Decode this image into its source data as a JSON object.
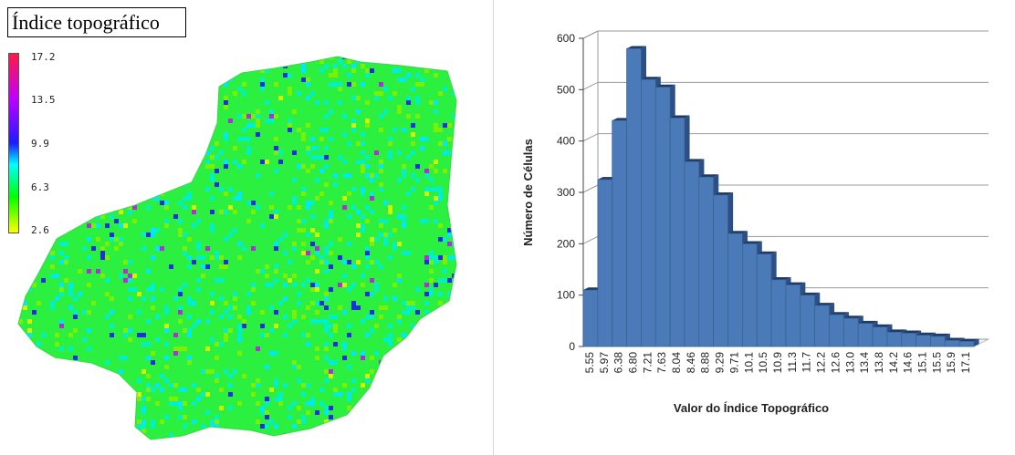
{
  "map": {
    "title": "Índice topográfico",
    "legend_ticks": [
      "17.2",
      "13.5",
      "9.9",
      "6.3",
      "2.6"
    ],
    "legend_colors": [
      "#ff1a40",
      "#c000ff",
      "#1c1cff",
      "#00ffff",
      "#00ff00",
      "#ffff00"
    ]
  },
  "chart_data": {
    "type": "bar",
    "xlabel": "Valor do Índice Topográfico",
    "ylabel": "Número de Células",
    "ylim": [
      0,
      600
    ],
    "yticks": [
      0,
      100,
      200,
      300,
      400,
      500,
      600
    ],
    "bar_color": "#4a7ab8",
    "tick_labels": [
      "5.55",
      "5.97",
      "6.38",
      "6.80",
      "7.21",
      "7.63",
      "8.04",
      "8.46",
      "8.88",
      "9.29",
      "9.71",
      "10.1",
      "10.5",
      "10.9",
      "11.3",
      "11.7",
      "12.2",
      "12.6",
      "13.0",
      "13.4",
      "13.8",
      "14.2",
      "14.6",
      "15.1",
      "15.5",
      "15.9",
      "17.1"
    ],
    "values": [
      110,
      325,
      440,
      580,
      520,
      505,
      445,
      360,
      330,
      295,
      220,
      200,
      180,
      130,
      120,
      100,
      80,
      62,
      55,
      45,
      38,
      28,
      26,
      22,
      20,
      12,
      10
    ],
    "grid": true
  }
}
